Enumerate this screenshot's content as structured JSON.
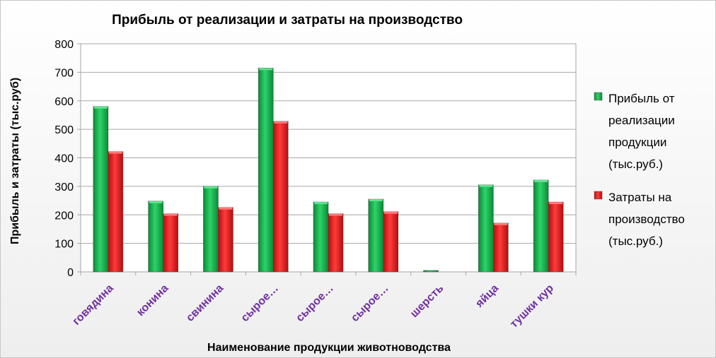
{
  "chart_data": {
    "type": "bar",
    "title": "Прибыль от реализации и затраты на производство",
    "xlabel": "Наименование продукции животноводства",
    "ylabel": "Прибыль и затраты (тыс.руб)",
    "ylim": [
      0,
      800
    ],
    "yticks": [
      0,
      100,
      200,
      300,
      400,
      500,
      600,
      700,
      800
    ],
    "categories": [
      "говядина",
      "конина",
      "свинина",
      "сырое…",
      "сырое…",
      "сырое…",
      "шерсть",
      "яйца",
      "тушки кур"
    ],
    "series": [
      {
        "name": "Прибыль от реализации продукции (тыс.руб.)",
        "name_lines": [
          "Прибыль от",
          "реализации",
          "продукции",
          "(тыс.руб.)"
        ],
        "color": "#1db350",
        "values": [
          580,
          248,
          300,
          715,
          245,
          255,
          5,
          305,
          322
        ]
      },
      {
        "name": "Затраты на производство (тыс.руб.)",
        "name_lines": [
          "Затраты на",
          "производство",
          "(тыс.руб.)"
        ],
        "color": "#ee1c1c",
        "values": [
          422,
          204,
          226,
          528,
          204,
          211,
          0,
          171,
          245
        ]
      }
    ],
    "grid": true,
    "legend_position": "right"
  }
}
